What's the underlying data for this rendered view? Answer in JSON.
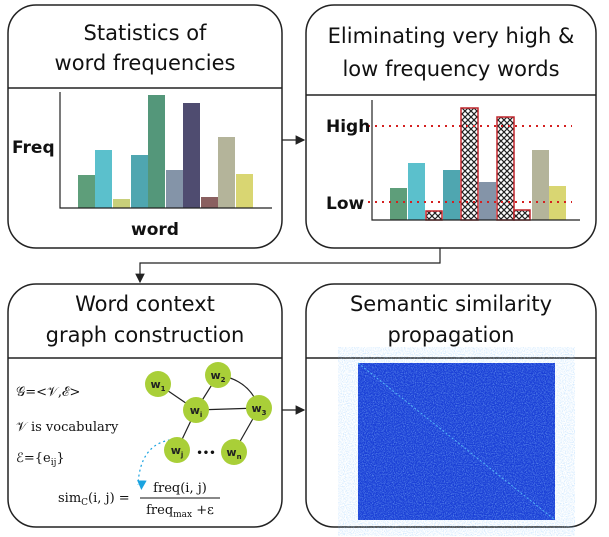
{
  "panels": [
    {
      "title": [
        "Statistics of",
        "word frequencies"
      ],
      "y_label": "Freq",
      "x_label": "word"
    },
    {
      "title": [
        "Eliminating very high &",
        "low frequency words"
      ],
      "high_label": "High",
      "low_label": "Low"
    },
    {
      "title": [
        "Word context",
        "graph construction"
      ],
      "definitions": [
        "𝒢=<𝒱,ℰ>",
        "𝒱  is vocabulary",
        "ℰ={e",
        "ij",
        "}"
      ],
      "nodes": [
        {
          "base": "w",
          "sub": "1"
        },
        {
          "base": "w",
          "sub": "2"
        },
        {
          "base": "w",
          "sub": "i"
        },
        {
          "base": "w",
          "sub": "3"
        },
        {
          "base": "w",
          "sub": "j"
        },
        {
          "base": "w",
          "sub": "n"
        }
      ],
      "ellipsis": "•••",
      "formula": {
        "lhs": "sim",
        "lhs_sub": "C",
        "lhs_rest": "(i, j) =",
        "numerator": "freq(i, j)",
        "denominator": "freq",
        "denominator_sub": "max",
        "denominator_rest": " +ε"
      }
    },
    {
      "title": [
        "Semantic similarity",
        "propagation"
      ]
    }
  ]
}
